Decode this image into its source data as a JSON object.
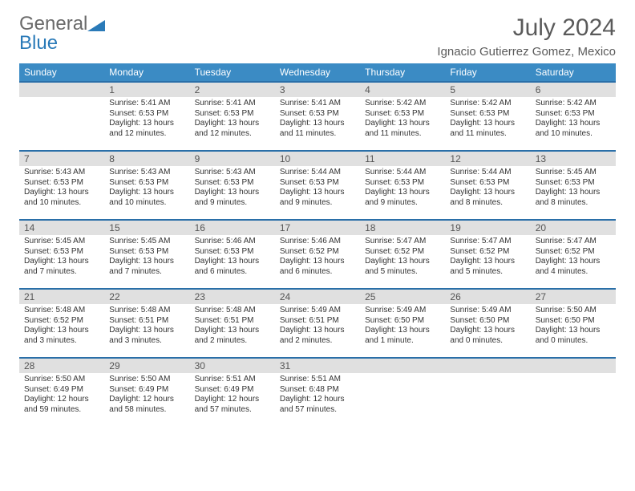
{
  "logo": {
    "text1": "General",
    "text2": "Blue"
  },
  "title": "July 2024",
  "location": "Ignacio Gutierrez Gomez, Mexico",
  "colors": {
    "header_bg": "#3b8bc4",
    "header_text": "#ffffff",
    "daynum_bg": "#e0e0e0",
    "daynum_border": "#2a6fa8",
    "body_text": "#333333",
    "title_text": "#5a5a5a",
    "logo_gray": "#6a6a6a",
    "logo_blue": "#2a7ab8",
    "page_bg": "#ffffff"
  },
  "fonts": {
    "title_size_pt": 22,
    "location_size_pt": 11,
    "dayheader_size_pt": 9,
    "daynum_size_pt": 9,
    "body_size_pt": 7.5
  },
  "day_headers": [
    "Sunday",
    "Monday",
    "Tuesday",
    "Wednesday",
    "Thursday",
    "Friday",
    "Saturday"
  ],
  "weeks": [
    [
      {
        "n": "",
        "sr": "",
        "ss": "",
        "dl": ""
      },
      {
        "n": "1",
        "sr": "Sunrise: 5:41 AM",
        "ss": "Sunset: 6:53 PM",
        "dl": "Daylight: 13 hours and 12 minutes."
      },
      {
        "n": "2",
        "sr": "Sunrise: 5:41 AM",
        "ss": "Sunset: 6:53 PM",
        "dl": "Daylight: 13 hours and 12 minutes."
      },
      {
        "n": "3",
        "sr": "Sunrise: 5:41 AM",
        "ss": "Sunset: 6:53 PM",
        "dl": "Daylight: 13 hours and 11 minutes."
      },
      {
        "n": "4",
        "sr": "Sunrise: 5:42 AM",
        "ss": "Sunset: 6:53 PM",
        "dl": "Daylight: 13 hours and 11 minutes."
      },
      {
        "n": "5",
        "sr": "Sunrise: 5:42 AM",
        "ss": "Sunset: 6:53 PM",
        "dl": "Daylight: 13 hours and 11 minutes."
      },
      {
        "n": "6",
        "sr": "Sunrise: 5:42 AM",
        "ss": "Sunset: 6:53 PM",
        "dl": "Daylight: 13 hours and 10 minutes."
      }
    ],
    [
      {
        "n": "7",
        "sr": "Sunrise: 5:43 AM",
        "ss": "Sunset: 6:53 PM",
        "dl": "Daylight: 13 hours and 10 minutes."
      },
      {
        "n": "8",
        "sr": "Sunrise: 5:43 AM",
        "ss": "Sunset: 6:53 PM",
        "dl": "Daylight: 13 hours and 10 minutes."
      },
      {
        "n": "9",
        "sr": "Sunrise: 5:43 AM",
        "ss": "Sunset: 6:53 PM",
        "dl": "Daylight: 13 hours and 9 minutes."
      },
      {
        "n": "10",
        "sr": "Sunrise: 5:44 AM",
        "ss": "Sunset: 6:53 PM",
        "dl": "Daylight: 13 hours and 9 minutes."
      },
      {
        "n": "11",
        "sr": "Sunrise: 5:44 AM",
        "ss": "Sunset: 6:53 PM",
        "dl": "Daylight: 13 hours and 9 minutes."
      },
      {
        "n": "12",
        "sr": "Sunrise: 5:44 AM",
        "ss": "Sunset: 6:53 PM",
        "dl": "Daylight: 13 hours and 8 minutes."
      },
      {
        "n": "13",
        "sr": "Sunrise: 5:45 AM",
        "ss": "Sunset: 6:53 PM",
        "dl": "Daylight: 13 hours and 8 minutes."
      }
    ],
    [
      {
        "n": "14",
        "sr": "Sunrise: 5:45 AM",
        "ss": "Sunset: 6:53 PM",
        "dl": "Daylight: 13 hours and 7 minutes."
      },
      {
        "n": "15",
        "sr": "Sunrise: 5:45 AM",
        "ss": "Sunset: 6:53 PM",
        "dl": "Daylight: 13 hours and 7 minutes."
      },
      {
        "n": "16",
        "sr": "Sunrise: 5:46 AM",
        "ss": "Sunset: 6:53 PM",
        "dl": "Daylight: 13 hours and 6 minutes."
      },
      {
        "n": "17",
        "sr": "Sunrise: 5:46 AM",
        "ss": "Sunset: 6:52 PM",
        "dl": "Daylight: 13 hours and 6 minutes."
      },
      {
        "n": "18",
        "sr": "Sunrise: 5:47 AM",
        "ss": "Sunset: 6:52 PM",
        "dl": "Daylight: 13 hours and 5 minutes."
      },
      {
        "n": "19",
        "sr": "Sunrise: 5:47 AM",
        "ss": "Sunset: 6:52 PM",
        "dl": "Daylight: 13 hours and 5 minutes."
      },
      {
        "n": "20",
        "sr": "Sunrise: 5:47 AM",
        "ss": "Sunset: 6:52 PM",
        "dl": "Daylight: 13 hours and 4 minutes."
      }
    ],
    [
      {
        "n": "21",
        "sr": "Sunrise: 5:48 AM",
        "ss": "Sunset: 6:52 PM",
        "dl": "Daylight: 13 hours and 3 minutes."
      },
      {
        "n": "22",
        "sr": "Sunrise: 5:48 AM",
        "ss": "Sunset: 6:51 PM",
        "dl": "Daylight: 13 hours and 3 minutes."
      },
      {
        "n": "23",
        "sr": "Sunrise: 5:48 AM",
        "ss": "Sunset: 6:51 PM",
        "dl": "Daylight: 13 hours and 2 minutes."
      },
      {
        "n": "24",
        "sr": "Sunrise: 5:49 AM",
        "ss": "Sunset: 6:51 PM",
        "dl": "Daylight: 13 hours and 2 minutes."
      },
      {
        "n": "25",
        "sr": "Sunrise: 5:49 AM",
        "ss": "Sunset: 6:50 PM",
        "dl": "Daylight: 13 hours and 1 minute."
      },
      {
        "n": "26",
        "sr": "Sunrise: 5:49 AM",
        "ss": "Sunset: 6:50 PM",
        "dl": "Daylight: 13 hours and 0 minutes."
      },
      {
        "n": "27",
        "sr": "Sunrise: 5:50 AM",
        "ss": "Sunset: 6:50 PM",
        "dl": "Daylight: 13 hours and 0 minutes."
      }
    ],
    [
      {
        "n": "28",
        "sr": "Sunrise: 5:50 AM",
        "ss": "Sunset: 6:49 PM",
        "dl": "Daylight: 12 hours and 59 minutes."
      },
      {
        "n": "29",
        "sr": "Sunrise: 5:50 AM",
        "ss": "Sunset: 6:49 PM",
        "dl": "Daylight: 12 hours and 58 minutes."
      },
      {
        "n": "30",
        "sr": "Sunrise: 5:51 AM",
        "ss": "Sunset: 6:49 PM",
        "dl": "Daylight: 12 hours and 57 minutes."
      },
      {
        "n": "31",
        "sr": "Sunrise: 5:51 AM",
        "ss": "Sunset: 6:48 PM",
        "dl": "Daylight: 12 hours and 57 minutes."
      },
      {
        "n": "",
        "sr": "",
        "ss": "",
        "dl": ""
      },
      {
        "n": "",
        "sr": "",
        "ss": "",
        "dl": ""
      },
      {
        "n": "",
        "sr": "",
        "ss": "",
        "dl": ""
      }
    ]
  ]
}
